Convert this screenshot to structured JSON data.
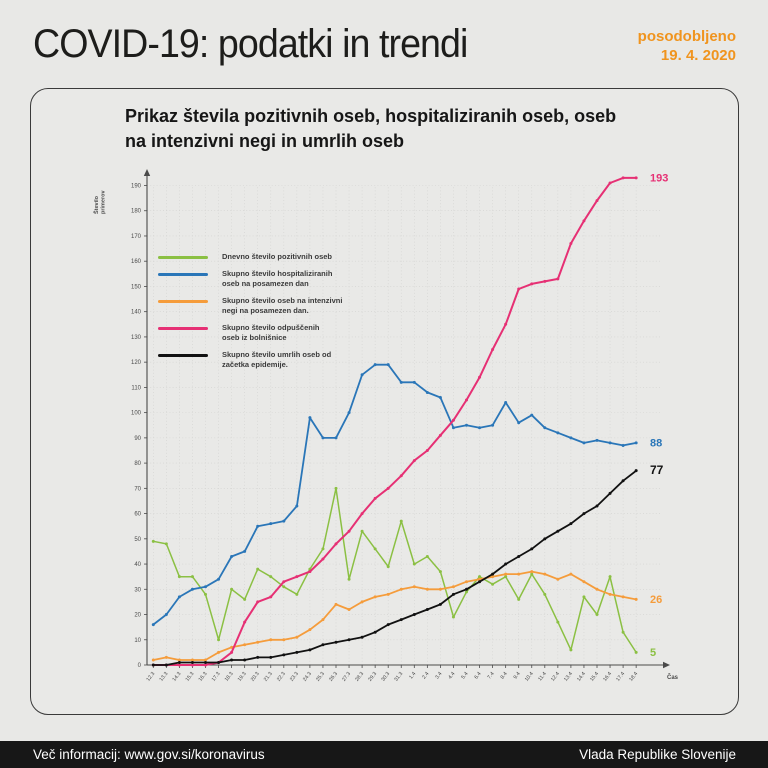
{
  "header": {
    "title": "COVID-19: podatki in trendi",
    "updated_label": "posodobljeno",
    "updated_date": "19. 4. 2020"
  },
  "card": {
    "title": "Prikaz števila pozitivnih oseb, hospitaliziranih oseb, oseb\nna intenzivni negi in umrlih oseb"
  },
  "chart_data": {
    "type": "line",
    "title": "Prikaz števila pozitivnih oseb, hospitaliziranih oseb, oseb na intenzivni negi in umrlih oseb",
    "xlabel": "Čas",
    "ylabel": "Število primerov",
    "ylim": [
      0,
      190
    ],
    "ytick_step": 10,
    "grid": true,
    "legend_position": "upper-left",
    "x": [
      "12.3",
      "13.3",
      "14.3",
      "15.3",
      "16.3",
      "17.3",
      "18.3",
      "19.3",
      "20.3",
      "21.3",
      "22.3",
      "23.3",
      "24.3",
      "25.3",
      "26.3",
      "27.3",
      "28.3",
      "29.3",
      "30.3",
      "31.3",
      "1.4",
      "2.4",
      "3.4",
      "4.4",
      "5.4",
      "6.4",
      "7.4",
      "8.4",
      "9.4",
      "10.4",
      "11.4",
      "12.4",
      "13.4",
      "14.4",
      "15.4",
      "16.4",
      "17.4",
      "18.4"
    ],
    "series": [
      {
        "key": "positives",
        "name": "Dnevno število pozitivnih oseb",
        "color": "#8bc043",
        "end_label": "5",
        "values": [
          49,
          48,
          35,
          35,
          28,
          10,
          30,
          26,
          38,
          35,
          31,
          28,
          38,
          46,
          70,
          34,
          53,
          46,
          39,
          57,
          40,
          43,
          37,
          19,
          29,
          35,
          32,
          35,
          26,
          36,
          28,
          17,
          6,
          27,
          20,
          35,
          13,
          5
        ]
      },
      {
        "key": "hospitalized",
        "name": "Skupno število hospitaliziranih\noseb na posamezen dan",
        "color": "#2a76b8",
        "end_label": "88",
        "values": [
          16,
          20,
          27,
          30,
          31,
          34,
          43,
          45,
          55,
          56,
          57,
          63,
          98,
          90,
          90,
          100,
          115,
          119,
          119,
          112,
          112,
          108,
          106,
          94,
          95,
          94,
          95,
          104,
          96,
          99,
          94,
          92,
          90,
          88,
          89,
          88,
          87,
          88
        ]
      },
      {
        "key": "icu",
        "name": "Skupno število oseb na intenzivni\nnegi na posamezen dan.",
        "color": "#f59c3b",
        "end_label": "26",
        "values": [
          2,
          3,
          2,
          2,
          2,
          5,
          7,
          8,
          9,
          10,
          10,
          11,
          14,
          18,
          24,
          22,
          25,
          27,
          28,
          30,
          31,
          30,
          30,
          31,
          33,
          34,
          35,
          36,
          36,
          37,
          36,
          34,
          36,
          33,
          30,
          28,
          27,
          26
        ]
      },
      {
        "key": "discharged",
        "name": "Skupno število odpuščenih\noseb iz bolnišnice",
        "color": "#e63074",
        "end_label": "193",
        "values": [
          0,
          0,
          0,
          0,
          0,
          1,
          5,
          17,
          25,
          27,
          33,
          35,
          37,
          42,
          48,
          53,
          60,
          66,
          70,
          75,
          81,
          85,
          91,
          97,
          105,
          114,
          125,
          135,
          149,
          151,
          152,
          153,
          167,
          176,
          184,
          191,
          193,
          193
        ]
      },
      {
        "key": "deaths",
        "name": "Skupno število umrlih oseb od\nzačetka epidemije.",
        "color": "#111111",
        "end_label": "77",
        "values": [
          0,
          0,
          1,
          1,
          1,
          1,
          2,
          2,
          3,
          3,
          4,
          5,
          6,
          8,
          9,
          10,
          11,
          13,
          16,
          18,
          20,
          22,
          24,
          28,
          30,
          33,
          36,
          40,
          43,
          46,
          50,
          53,
          56,
          60,
          63,
          68,
          73,
          77
        ]
      }
    ]
  },
  "footer": {
    "left": "Več informacij: www.gov.si/koronavirus",
    "right": "Vlada Republike Slovenije"
  },
  "colors": {
    "accent_orange": "#f0941e",
    "background": "#e8e8e6",
    "footer_bg": "#171717",
    "axis": "#4a4a4a",
    "grid": "#d2d2d0"
  }
}
